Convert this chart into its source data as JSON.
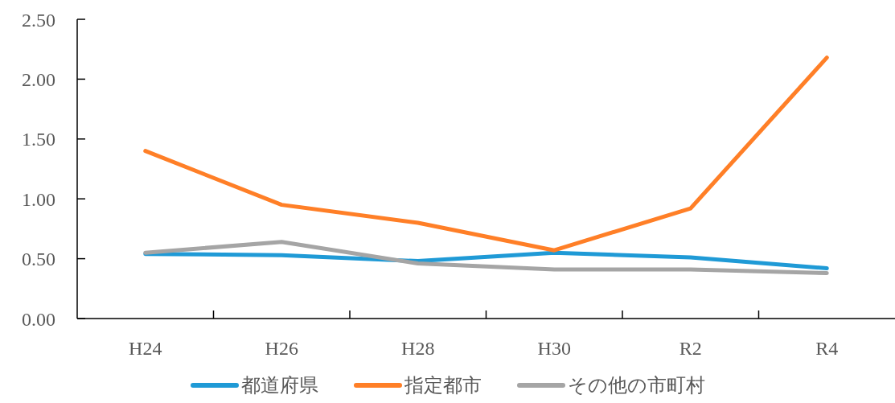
{
  "chart_data": {
    "type": "line",
    "categories": [
      "H24",
      "H26",
      "H28",
      "H30",
      "R2",
      "R4"
    ],
    "series": [
      {
        "name": "都道府県",
        "color": "#1f9ad6",
        "values": [
          0.54,
          0.53,
          0.48,
          0.55,
          0.51,
          0.42
        ]
      },
      {
        "name": "指定都市",
        "color": "#ff7f27",
        "values": [
          1.4,
          0.95,
          0.8,
          0.57,
          0.92,
          2.18
        ]
      },
      {
        "name": "その他の市町村",
        "color": "#a5a5a5",
        "values": [
          0.55,
          0.64,
          0.46,
          0.41,
          0.41,
          0.38
        ]
      }
    ],
    "ylim": [
      0,
      2.5
    ],
    "yticks": [
      {
        "value": 0,
        "label": "0.00"
      },
      {
        "value": 0.5,
        "label": "0.50"
      },
      {
        "value": 1,
        "label": "1.00"
      },
      {
        "value": 1.5,
        "label": "1.50"
      },
      {
        "value": 2,
        "label": "2.00"
      },
      {
        "value": 2.5,
        "label": "2.50"
      }
    ],
    "legend": "bottom",
    "marker": "none",
    "line_style": "solid"
  }
}
